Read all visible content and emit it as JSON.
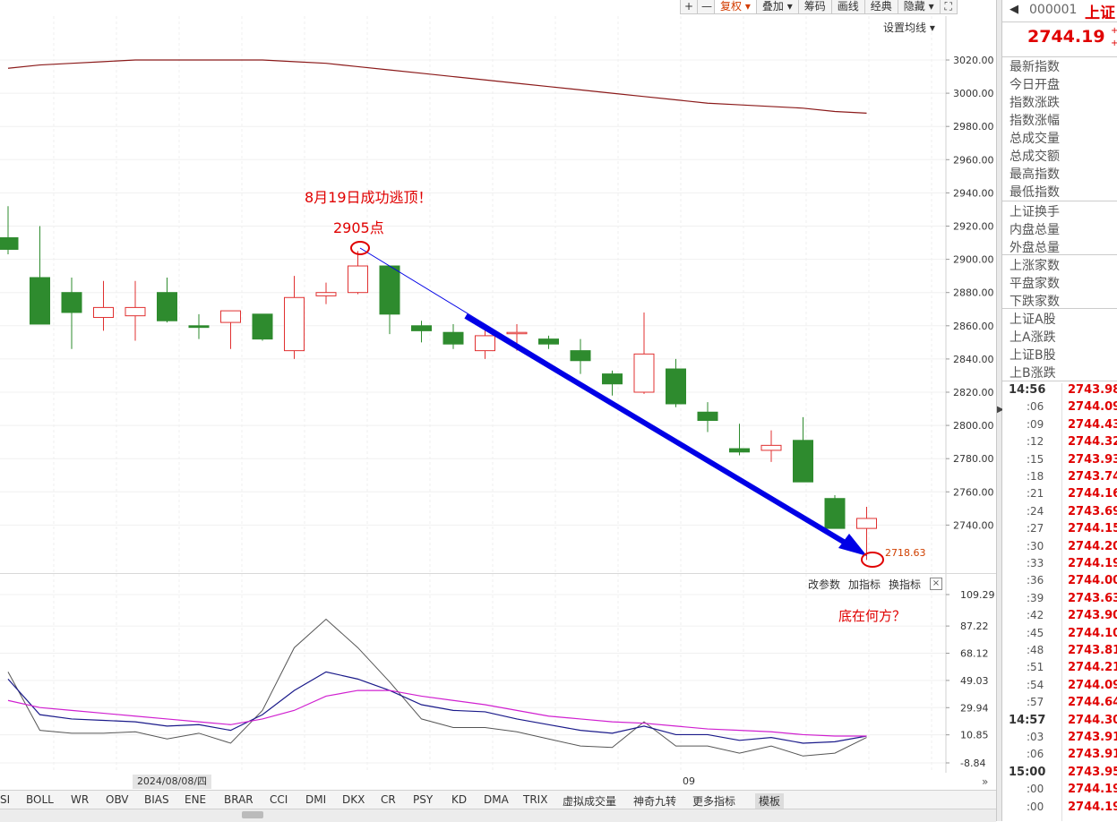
{
  "toolbar": {
    "zoom_in": "+",
    "zoom_out": "—",
    "items": [
      "复权",
      "叠加",
      "筹码",
      "画线",
      "经典",
      "隐藏"
    ],
    "arrows_1": "▾",
    "arrows_2": "▾"
  },
  "main_chart": {
    "ma_setting": "设置均线",
    "price_axis": [
      "3020.00",
      "3000.00",
      "2980.00",
      "2960.00",
      "2940.00",
      "2920.00",
      "2900.00",
      "2880.00",
      "2860.00",
      "2840.00",
      "2820.00",
      "2800.00",
      "2780.00",
      "2760.00",
      "2740.00"
    ],
    "annotation_top": "8月19日成功逃顶！",
    "annotation_peak": "2905点",
    "low_label": "2718.63",
    "annotation_bottom": "底在何方？",
    "colors": {
      "up": "#e03030",
      "down": "#2e8b2e",
      "arrow": "#0000e6",
      "circle": "#e00000",
      "ma": "#8b1a1a"
    }
  },
  "chart_data": {
    "type": "candlestick",
    "y_range": [
      2710,
      3030
    ],
    "candles": [
      {
        "o": 2913,
        "c": 2906,
        "h": 2932,
        "l": 2903
      },
      {
        "o": 2889,
        "c": 2861,
        "h": 2920,
        "l": 2861
      },
      {
        "o": 2880,
        "c": 2868,
        "h": 2889,
        "l": 2846
      },
      {
        "o": 2865,
        "c": 2871,
        "h": 2887,
        "l": 2857
      },
      {
        "o": 2866,
        "c": 2871,
        "h": 2887,
        "l": 2851
      },
      {
        "o": 2880,
        "c": 2863,
        "h": 2889,
        "l": 2862
      },
      {
        "o": 2860,
        "c": 2859,
        "h": 2867,
        "l": 2852
      },
      {
        "o": 2862,
        "c": 2869,
        "h": 2869,
        "l": 2846
      },
      {
        "o": 2867,
        "c": 2852,
        "h": 2867,
        "l": 2851
      },
      {
        "o": 2845,
        "c": 2877,
        "h": 2890,
        "l": 2840
      },
      {
        "o": 2878,
        "c": 2880,
        "h": 2886,
        "l": 2873
      },
      {
        "o": 2880,
        "c": 2896,
        "h": 2905,
        "l": 2879
      },
      {
        "o": 2896,
        "c": 2867,
        "h": 2896,
        "l": 2855
      },
      {
        "o": 2860,
        "c": 2857,
        "h": 2863,
        "l": 2850
      },
      {
        "o": 2856,
        "c": 2849,
        "h": 2861,
        "l": 2846
      },
      {
        "o": 2845,
        "c": 2854,
        "h": 2857,
        "l": 2840
      },
      {
        "o": 2856,
        "c": 2856,
        "h": 2861,
        "l": 2845
      },
      {
        "o": 2852,
        "c": 2849,
        "h": 2854,
        "l": 2846
      },
      {
        "o": 2845,
        "c": 2839,
        "h": 2852,
        "l": 2831
      },
      {
        "o": 2831,
        "c": 2825,
        "h": 2833,
        "l": 2818
      },
      {
        "o": 2820,
        "c": 2843,
        "h": 2868,
        "l": 2819
      },
      {
        "o": 2834,
        "c": 2813,
        "h": 2840,
        "l": 2811
      },
      {
        "o": 2808,
        "c": 2803,
        "h": 2814,
        "l": 2796
      },
      {
        "o": 2786,
        "c": 2784,
        "h": 2801,
        "l": 2782
      },
      {
        "o": 2785,
        "c": 2788,
        "h": 2797,
        "l": 2778
      },
      {
        "o": 2791,
        "c": 2766,
        "h": 2805,
        "l": 2766
      },
      {
        "o": 2756,
        "c": 2738,
        "h": 2758,
        "l": 2738
      },
      {
        "o": 2738,
        "c": 2744,
        "h": 2751,
        "l": 2719
      }
    ],
    "ma_line": [
      3015,
      3017,
      3018,
      3019,
      3020,
      3020,
      3020,
      3020,
      3020,
      3019,
      3018,
      3016,
      3014,
      3012,
      3010,
      3008,
      3006,
      3004,
      3002,
      3000,
      2998,
      2996,
      2994,
      2993,
      2992,
      2991,
      2989,
      2988
    ]
  },
  "indicator_chart": {
    "controls": [
      "改参数",
      "加指标",
      "换指标"
    ],
    "close": "×",
    "axis": [
      "109.29",
      "87.22",
      "68.12",
      "49.03",
      "29.94",
      "10.85",
      "-8.84"
    ],
    "date_label": "2024/08/08/四",
    "month_label": "09",
    "y_range": [
      -8.84,
      109.29
    ],
    "line_gray": [
      55,
      14,
      12,
      12,
      13,
      8,
      12,
      5,
      28,
      72,
      92,
      72,
      48,
      22,
      16,
      16,
      13,
      8,
      3,
      2,
      20,
      3,
      3,
      -2,
      3,
      -4,
      -2,
      9
    ],
    "line_navy": [
      50,
      25,
      22,
      21,
      20,
      17,
      18,
      14,
      25,
      42,
      55,
      50,
      42,
      32,
      28,
      27,
      22,
      18,
      14,
      12,
      17,
      11,
      11,
      7,
      9,
      5,
      6,
      10
    ],
    "line_magenta": [
      35,
      30,
      28,
      26,
      24,
      22,
      20,
      18,
      22,
      28,
      38,
      42,
      42,
      38,
      35,
      32,
      28,
      24,
      22,
      20,
      19,
      17,
      15,
      14,
      13,
      11,
      10,
      10
    ]
  },
  "tabs": [
    "SI",
    "BOLL",
    "WR",
    "OBV",
    "BIAS",
    "ENE",
    "BRAR",
    "CCI",
    "DMI",
    "DKX",
    "CR",
    "PSY",
    "KD",
    "DMA",
    "TRIX",
    "虚拟成交量",
    "神奇九转",
    "更多指标",
    "模板"
  ],
  "right_panel": {
    "code": "000001",
    "name": "上证",
    "price": "2744.19",
    "labels": [
      "最新指数",
      "今日开盘",
      "指数涨跌",
      "指数涨幅",
      "总成交量",
      "总成交额",
      "最高指数",
      "最低指数",
      "上证换手",
      "内盘总量",
      "外盘总量",
      "上涨家数",
      "平盘家数",
      "下跌家数",
      "上证A股",
      "上A涨跌",
      "上证B股",
      "上B涨跌"
    ],
    "ticks": [
      {
        "t": "14:56",
        "v": "2743.98"
      },
      {
        "t": ":06",
        "v": "2744.09"
      },
      {
        "t": ":09",
        "v": "2744.43"
      },
      {
        "t": ":12",
        "v": "2744.32"
      },
      {
        "t": ":15",
        "v": "2743.93"
      },
      {
        "t": ":18",
        "v": "2743.74"
      },
      {
        "t": ":21",
        "v": "2744.16"
      },
      {
        "t": ":24",
        "v": "2743.69"
      },
      {
        "t": ":27",
        "v": "2744.15"
      },
      {
        "t": ":30",
        "v": "2744.20"
      },
      {
        "t": ":33",
        "v": "2744.19"
      },
      {
        "t": ":36",
        "v": "2744.00"
      },
      {
        "t": ":39",
        "v": "2743.63"
      },
      {
        "t": ":42",
        "v": "2743.90"
      },
      {
        "t": ":45",
        "v": "2744.10"
      },
      {
        "t": ":48",
        "v": "2743.81"
      },
      {
        "t": ":51",
        "v": "2744.21"
      },
      {
        "t": ":54",
        "v": "2744.09"
      },
      {
        "t": ":57",
        "v": "2744.64"
      },
      {
        "t": "14:57",
        "v": "2744.30"
      },
      {
        "t": ":03",
        "v": "2743.91"
      },
      {
        "t": ":06",
        "v": "2743.91"
      },
      {
        "t": "15:00",
        "v": "2743.95"
      },
      {
        "t": ":00",
        "v": "2744.19"
      },
      {
        "t": ":00",
        "v": "2744.19"
      }
    ]
  }
}
